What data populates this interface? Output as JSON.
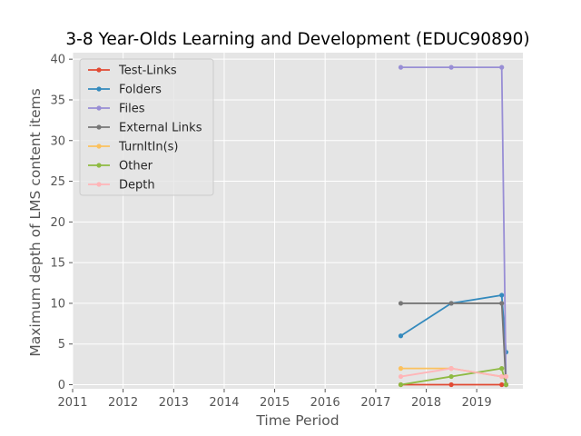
{
  "chart_data": {
    "type": "line",
    "title": "3-8 Year-Olds Learning and Development (EDUC90890)",
    "xlabel": "Time Period",
    "ylabel": "Maximum depth of LMS content items",
    "xlim": [
      "2011-01-01",
      "2019-12-01"
    ],
    "ylim": [
      -0.5,
      40.8
    ],
    "xticks": [
      {
        "value": "2011-01-01",
        "label": "2011"
      },
      {
        "value": "2012-01-01",
        "label": "2012"
      },
      {
        "value": "2013-01-01",
        "label": "2013"
      },
      {
        "value": "2014-01-01",
        "label": "2014"
      },
      {
        "value": "2015-01-01",
        "label": "2015"
      },
      {
        "value": "2016-01-01",
        "label": "2016"
      },
      {
        "value": "2017-01-01",
        "label": "2017"
      },
      {
        "value": "2018-01-01",
        "label": "2018"
      },
      {
        "value": "2019-01-01",
        "label": "2019"
      }
    ],
    "yticks": [
      0,
      5,
      10,
      15,
      20,
      25,
      30,
      35,
      40
    ],
    "grid": true,
    "legend_position": "top-left",
    "x": [
      "2017-07-01",
      "2018-07-01",
      "2019-07-01",
      "2019-08-01"
    ],
    "series": [
      {
        "name": "Test-Links",
        "color": "#E24A33",
        "values": [
          0,
          0,
          0,
          0
        ]
      },
      {
        "name": "Folders",
        "color": "#348ABD",
        "values": [
          6,
          10,
          11,
          4
        ]
      },
      {
        "name": "Files",
        "color": "#988ED5",
        "values": [
          39,
          39,
          39,
          0
        ]
      },
      {
        "name": "External Links",
        "color": "#777777",
        "values": [
          10,
          10,
          10,
          0
        ]
      },
      {
        "name": "TurnItIn(s)",
        "color": "#FBC15E",
        "values": [
          2,
          2,
          1,
          1
        ]
      },
      {
        "name": "Other",
        "color": "#8EBA42",
        "values": [
          0,
          1,
          2,
          0
        ]
      },
      {
        "name": "Depth",
        "color": "#FFB5B8",
        "values": [
          1,
          2,
          1,
          1
        ]
      }
    ]
  }
}
